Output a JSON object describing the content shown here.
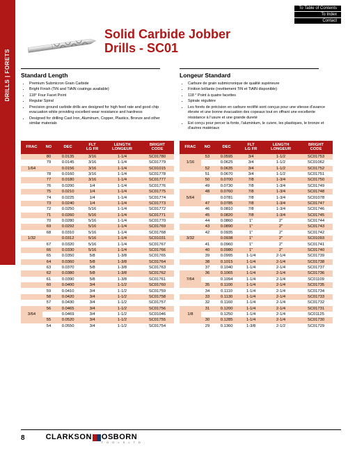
{
  "nav": {
    "toc": "To Table of Contents",
    "index": "To Index",
    "contact": "Contact"
  },
  "sidebar_label": "DRILLS | FORETS",
  "title_line1": "Solid Carbide Jobber",
  "title_line2": "Drills - SC01",
  "left_heading": "Standard Length",
  "right_heading": "Longeur Standard",
  "left_bullets": [
    "Premium Submicron Grain Carbide",
    "Bright Finish (TiN and TiAlN coatings available)",
    "118° Four Facet Point",
    "Regular Spiral",
    "Precision ground carbide drills are designed for high feed rate and good chip evacuation while providing excellent wear resistance and hardness",
    "Designed for drilling Cast Iron, Aluminum, Copper, Plastics, Bronze and other similar materials"
  ],
  "right_bullets": [
    "Carbure de grain submicronique de qualité supérieure",
    "Finition brillante (revêtement TiN et TiAlN disponible)",
    "118 ° Point à quatre facettes",
    "Spirale régulière",
    "Les forets de précision en carbure rectifié sont conçus pour une vitesse d'avance élevée et une bonne évacuation des copeaux tout en offrant une excellente résistance à l'usure et une grande dureté",
    "Est conçu pour percer la fonte, l'aluminium, le cuivre, les plastiques, le bronze et d'autres matériaux"
  ],
  "headers": {
    "frac": "FRAC",
    "no": "NO",
    "dec": "DEC",
    "flt": "FLT\nLG FR",
    "len": "LENGTH\nLONGEUR",
    "code": "BRIGHT\nCODE"
  },
  "left_rows": [
    {
      "frac": "",
      "no": "80",
      "dec": "0.0135",
      "flt": "3/16",
      "len": "1-1/4",
      "code": "SC01780"
    },
    {
      "frac": "",
      "no": "79",
      "dec": "0.0145",
      "flt": "3/16",
      "len": "1-1/4",
      "code": "SC01779"
    },
    {
      "frac": "1/64",
      "no": "",
      "dec": "0.0156",
      "flt": "3/16",
      "len": "1-1/4",
      "code": "SC01015"
    },
    {
      "frac": "",
      "no": "78",
      "dec": "0.0160",
      "flt": "3/16",
      "len": "1-1/4",
      "code": "SC01778"
    },
    {
      "frac": "",
      "no": "77",
      "dec": "0.0180",
      "flt": "3/16",
      "len": "1-1/4",
      "code": "SC01777"
    },
    {
      "frac": "",
      "no": "76",
      "dec": "0.0200",
      "flt": "1/4",
      "len": "1-1/4",
      "code": "SC01776"
    },
    {
      "frac": "",
      "no": "75",
      "dec": "0.0210",
      "flt": "1/4",
      "len": "1-1/4",
      "code": "SC01775"
    },
    {
      "frac": "",
      "no": "74",
      "dec": "0.0225",
      "flt": "1/4",
      "len": "1-1/4",
      "code": "SC01774"
    },
    {
      "frac": "",
      "no": "73",
      "dec": "0.0240",
      "flt": "1/4",
      "len": "1-1/4",
      "code": "SC01773"
    },
    {
      "frac": "",
      "no": "72",
      "dec": "0.0250",
      "flt": "5/16",
      "len": "1-1/4",
      "code": "SC01772"
    },
    {
      "frac": "",
      "no": "71",
      "dec": "0.0260",
      "flt": "5/16",
      "len": "1-1/4",
      "code": "SC01771"
    },
    {
      "frac": "",
      "no": "70",
      "dec": "0.0280",
      "flt": "5/16",
      "len": "1-1/4",
      "code": "SC01770"
    },
    {
      "frac": "",
      "no": "69",
      "dec": "0.0292",
      "flt": "5/16",
      "len": "1-1/4",
      "code": "SC01769"
    },
    {
      "frac": "",
      "no": "68",
      "dec": "0.0310",
      "flt": "5/16",
      "len": "1-1/4",
      "code": "SC01768"
    },
    {
      "frac": "1/32",
      "no": "",
      "dec": "0.0312",
      "flt": "5/16",
      "len": "1-1/4",
      "code": "SC01031"
    },
    {
      "frac": "",
      "no": "67",
      "dec": "0.0320",
      "flt": "5/16",
      "len": "1-1/4",
      "code": "SC01767"
    },
    {
      "frac": "",
      "no": "66",
      "dec": "0.0330",
      "flt": "5/16",
      "len": "1-1/4",
      "code": "SC01766"
    },
    {
      "frac": "",
      "no": "65",
      "dec": "0.0350",
      "flt": "5/8",
      "len": "1-3/8",
      "code": "SC01765"
    },
    {
      "frac": "",
      "no": "64",
      "dec": "0.0360",
      "flt": "5/8",
      "len": "1-3/8",
      "code": "SC01764"
    },
    {
      "frac": "",
      "no": "63",
      "dec": "0.0370",
      "flt": "5/8",
      "len": "1-3/8",
      "code": "SC01763"
    },
    {
      "frac": "",
      "no": "62",
      "dec": "0.0380",
      "flt": "5/8",
      "len": "1-3/8",
      "code": "SC01762"
    },
    {
      "frac": "",
      "no": "61",
      "dec": "0.0390",
      "flt": "5/8",
      "len": "1-3/8",
      "code": "SC01761"
    },
    {
      "frac": "",
      "no": "60",
      "dec": "0.0400",
      "flt": "3/4",
      "len": "1-1/2",
      "code": "SC01760"
    },
    {
      "frac": "",
      "no": "59",
      "dec": "0.0410",
      "flt": "3/4",
      "len": "1-1/2",
      "code": "SC01759"
    },
    {
      "frac": "",
      "no": "58",
      "dec": "0.0420",
      "flt": "3/4",
      "len": "1-1/2",
      "code": "SC01758"
    },
    {
      "frac": "",
      "no": "57",
      "dec": "0.0430",
      "flt": "3/4",
      "len": "1-1/2",
      "code": "SC01757"
    },
    {
      "frac": "",
      "no": "56",
      "dec": "0.0465",
      "flt": "3/4",
      "len": "1-1/2",
      "code": "SC01756"
    },
    {
      "frac": "3/64",
      "no": "",
      "dec": "0.0469",
      "flt": "3/4",
      "len": "1-1/2",
      "code": "SC01046"
    },
    {
      "frac": "",
      "no": "55",
      "dec": "0.0520",
      "flt": "3/4",
      "len": "1-1/2",
      "code": "SC01755"
    },
    {
      "frac": "",
      "no": "54",
      "dec": "0.0550",
      "flt": "3/4",
      "len": "1-1/2",
      "code": "SC01754"
    }
  ],
  "right_rows": [
    {
      "frac": "",
      "no": "53",
      "dec": "0.0595",
      "flt": "3/4",
      "len": "1-1/2",
      "code": "SC01753"
    },
    {
      "frac": "1/16",
      "no": "",
      "dec": "0.0625",
      "flt": "3/4",
      "len": "1-1/2",
      "code": "SC01062"
    },
    {
      "frac": "",
      "no": "52",
      "dec": "0.0635",
      "flt": "3/4",
      "len": "1-1/2",
      "code": "SC01752"
    },
    {
      "frac": "",
      "no": "51",
      "dec": "0.0670",
      "flt": "3/4",
      "len": "1-1/2",
      "code": "SC01751"
    },
    {
      "frac": "",
      "no": "50",
      "dec": "0.0700",
      "flt": "7/8",
      "len": "1-3/4",
      "code": "SC01750"
    },
    {
      "frac": "",
      "no": "49",
      "dec": "0.0730",
      "flt": "7/8",
      "len": "1-3/4",
      "code": "SC01749"
    },
    {
      "frac": "",
      "no": "48",
      "dec": "0.0760",
      "flt": "7/8",
      "len": "1-3/4",
      "code": "SC01748"
    },
    {
      "frac": "5/64",
      "no": "",
      "dec": "0.0781",
      "flt": "7/8",
      "len": "1-3/4",
      "code": "SC01078"
    },
    {
      "frac": "",
      "no": "47",
      "dec": "0.0785",
      "flt": "7/8",
      "len": "1-3/4",
      "code": "SC01747"
    },
    {
      "frac": "",
      "no": "46",
      "dec": "0.0810",
      "flt": "7/8",
      "len": "1-3/4",
      "code": "SC01746"
    },
    {
      "frac": "",
      "no": "45",
      "dec": "0.0820",
      "flt": "7/8",
      "len": "1-3/4",
      "code": "SC01745"
    },
    {
      "frac": "",
      "no": "44",
      "dec": "0.0860",
      "flt": "1\"",
      "len": "2\"",
      "code": "SC01744"
    },
    {
      "frac": "",
      "no": "43",
      "dec": "0.0890",
      "flt": "1\"",
      "len": "2\"",
      "code": "SC01743"
    },
    {
      "frac": "",
      "no": "42",
      "dec": "0.0935",
      "flt": "1\"",
      "len": "2\"",
      "code": "SC01742"
    },
    {
      "frac": "3/32",
      "no": "",
      "dec": "0.0938",
      "flt": "1\"",
      "len": "2\"",
      "code": "SC01093"
    },
    {
      "frac": "",
      "no": "41",
      "dec": "0.0960",
      "flt": "1\"",
      "len": "2\"",
      "code": "SC01741"
    },
    {
      "frac": "",
      "no": "40",
      "dec": "0.0980",
      "flt": "1\"",
      "len": "2\"",
      "code": "SC01740"
    },
    {
      "frac": "",
      "no": "39",
      "dec": "0.0995",
      "flt": "1-1/4",
      "len": "2-1/4",
      "code": "SC01739"
    },
    {
      "frac": "",
      "no": "38",
      "dec": "0.1015",
      "flt": "1-1/4",
      "len": "2-1/4",
      "code": "SC01738"
    },
    {
      "frac": "",
      "no": "37",
      "dec": "0.1040",
      "flt": "1-1/4",
      "len": "2-1/4",
      "code": "SC01737"
    },
    {
      "frac": "",
      "no": "36",
      "dec": "0.1065",
      "flt": "1-1/4",
      "len": "2-1/4",
      "code": "SC01736"
    },
    {
      "frac": "7/64",
      "no": "",
      "dec": "0.1094",
      "flt": "1-1/4",
      "len": "2-1/4",
      "code": "SC01109"
    },
    {
      "frac": "",
      "no": "35",
      "dec": "0.1100",
      "flt": "1-1/4",
      "len": "2-1/4",
      "code": "SC01735"
    },
    {
      "frac": "",
      "no": "34",
      "dec": "0.1110",
      "flt": "1-1/4",
      "len": "2-1/4",
      "code": "SC01734"
    },
    {
      "frac": "",
      "no": "33",
      "dec": "0.1130",
      "flt": "1-1/4",
      "len": "2-1/4",
      "code": "SC01733"
    },
    {
      "frac": "",
      "no": "32",
      "dec": "0.1160",
      "flt": "1-1/4",
      "len": "2-1/4",
      "code": "SC01732"
    },
    {
      "frac": "",
      "no": "31",
      "dec": "0.1200",
      "flt": "1-1/4",
      "len": "2-1/4",
      "code": "SC01731"
    },
    {
      "frac": "1/8",
      "no": "",
      "dec": "0.1250",
      "flt": "1-1/4",
      "len": "2-1/4",
      "code": "SC01125"
    },
    {
      "frac": "",
      "no": "30",
      "dec": "0.1285",
      "flt": "1-1/4",
      "len": "2-1/4",
      "code": "SC01730"
    },
    {
      "frac": "",
      "no": "29",
      "dec": "0.1360",
      "flt": "1-3/8",
      "len": "2-1/2",
      "code": "SC01729"
    }
  ],
  "footer": {
    "page": "8",
    "brand_left": "CLARKSON",
    "brand_right": "OSBORN",
    "brand_sub": "T  O  O  L  S     L  T  D  ."
  },
  "colors": {
    "primary": "#b01818",
    "row_stripe": "#f6d0b8",
    "bg": "#ffffff"
  }
}
